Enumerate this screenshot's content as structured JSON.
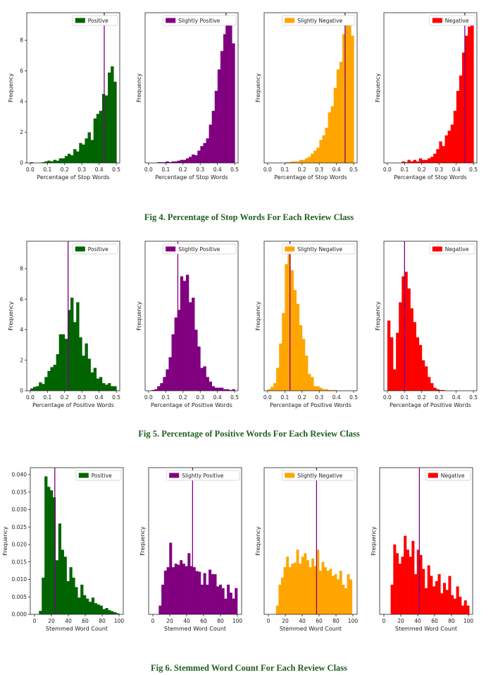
{
  "captions": [
    "Fig 4. Percentage of Stop Words For Each Review Class",
    "Fig 5. Percentage of Positive Words For Each Review Class",
    "Fig 6. Stemmed Word Count For Each Review Class"
  ],
  "colors": {
    "positive": "#006400",
    "slightly_positive": "#800080",
    "slightly_negative": "#FFA500",
    "negative": "#FF0000",
    "median_line": "#800080"
  },
  "chart_data": [
    {
      "type": "bar",
      "figure": "Fig 4",
      "panel": "Positive",
      "color": "#006400",
      "legend": "Positive",
      "xlabel": "Percentage of Stop Words",
      "ylabel": "Frequency",
      "xlim": [
        -0.02,
        0.52
      ],
      "ylim": [
        0,
        9.8
      ],
      "xticks": [
        0.0,
        0.1,
        0.2,
        0.3,
        0.4,
        0.5
      ],
      "yticks": [
        0,
        2,
        4,
        6,
        8
      ],
      "show_yticks": true,
      "bin_start": 0.0,
      "bin_width": 0.0167,
      "values": [
        0.05,
        0,
        0,
        0,
        0.05,
        0.1,
        0.15,
        0.1,
        0.2,
        0.15,
        0.3,
        0.3,
        0.45,
        0.6,
        0.5,
        0.9,
        0.75,
        1.3,
        1.2,
        1.6,
        2.0,
        1.5,
        2.9,
        3.2,
        3.4,
        4.5,
        4.4,
        5.9,
        6.3,
        5.3
      ],
      "vline": 0.43
    },
    {
      "type": "bar",
      "figure": "Fig 4",
      "panel": "Slightly Positive",
      "color": "#800080",
      "legend": "Slightly Positive",
      "xlabel": "Percentage of Stop Words",
      "ylabel": "Frequency",
      "xlim": [
        -0.02,
        0.52
      ],
      "ylim": [
        0,
        9.8
      ],
      "xticks": [
        0.0,
        0.1,
        0.2,
        0.3,
        0.4,
        0.5
      ],
      "yticks": [
        0,
        2,
        4,
        6,
        8
      ],
      "show_yticks": false,
      "bin_start": 0.0,
      "bin_width": 0.0167,
      "values": [
        0,
        0,
        0,
        0.05,
        0.05,
        0.05,
        0.1,
        0.05,
        0.1,
        0.1,
        0.15,
        0.2,
        0.2,
        0.3,
        0.4,
        0.55,
        0.5,
        0.8,
        1.1,
        1.3,
        1.6,
        2.5,
        3.4,
        4.7,
        6.1,
        7.3,
        8.4,
        9.3,
        9.0,
        7.8
      ],
      "vline": 0.45
    },
    {
      "type": "bar",
      "figure": "Fig 4",
      "panel": "Slightly Negative",
      "color": "#FFA500",
      "legend": "Slightly Negative",
      "xlabel": "Percentage of Stop Words",
      "ylabel": "Frequency",
      "xlim": [
        -0.02,
        0.52
      ],
      "ylim": [
        0,
        9.8
      ],
      "xticks": [
        0.0,
        0.1,
        0.2,
        0.3,
        0.4,
        0.5
      ],
      "yticks": [
        0,
        2,
        4,
        6,
        8
      ],
      "show_yticks": false,
      "bin_start": 0.0,
      "bin_width": 0.0167,
      "values": [
        0,
        0,
        0,
        0,
        0,
        0,
        0.05,
        0.05,
        0.1,
        0.1,
        0.1,
        0.2,
        0.2,
        0.3,
        0.4,
        0.6,
        0.8,
        1.0,
        1.5,
        1.8,
        2.3,
        3.3,
        3.7,
        4.9,
        6.1,
        6.6,
        8.4,
        9.6,
        9.4,
        8.3
      ],
      "vline": 0.45
    },
    {
      "type": "bar",
      "figure": "Fig 4",
      "panel": "Negative",
      "color": "#FF0000",
      "legend": "Negative",
      "xlabel": "Percentage of Stop Words",
      "ylabel": "Frequency",
      "xlim": [
        -0.02,
        0.52
      ],
      "ylim": [
        0,
        9.8
      ],
      "xticks": [
        0.0,
        0.1,
        0.2,
        0.3,
        0.4,
        0.5
      ],
      "yticks": [
        0,
        2,
        4,
        6,
        8
      ],
      "show_yticks": false,
      "bin_start": 0.0,
      "bin_width": 0.0167,
      "values": [
        0,
        0,
        0,
        0,
        0,
        0.1,
        0.05,
        0.2,
        0.1,
        0.2,
        0.1,
        0.3,
        0.2,
        0.2,
        0.3,
        0.4,
        0.6,
        0.9,
        1.4,
        1.1,
        1.8,
        2.1,
        2.5,
        3.4,
        4.7,
        5.7,
        7.2,
        8.3,
        8.9,
        9.1
      ],
      "vline": 0.45
    },
    {
      "type": "bar",
      "figure": "Fig 5",
      "panel": "Positive",
      "color": "#006400",
      "legend": "Positive",
      "xlabel": "Percentage of Positive Words",
      "ylabel": "Frequency",
      "xlim": [
        -0.02,
        0.52
      ],
      "ylim": [
        0,
        9.8
      ],
      "xticks": [
        0.0,
        0.1,
        0.2,
        0.3,
        0.4,
        0.5
      ],
      "yticks": [
        0,
        2,
        4,
        6,
        8
      ],
      "show_yticks": true,
      "bin_start": 0.0,
      "bin_width": 0.0167,
      "values": [
        0.15,
        0.25,
        0.3,
        0.55,
        0.45,
        0.9,
        1.3,
        1.55,
        1.7,
        2.4,
        3.7,
        3.7,
        3.4,
        5.3,
        6.1,
        4.5,
        5.8,
        3.5,
        2.3,
        3.1,
        2.1,
        1.2,
        1.5,
        0.8,
        0.9,
        0.5,
        0.4,
        0.5,
        0.3,
        0.3
      ],
      "vline": 0.22
    },
    {
      "type": "bar",
      "figure": "Fig 5",
      "panel": "Slightly Positive",
      "color": "#800080",
      "legend": "Slightly Positive",
      "xlabel": "Percentage of Positive Words",
      "ylabel": "Frequency",
      "xlim": [
        -0.02,
        0.52
      ],
      "ylim": [
        0,
        9.8
      ],
      "xticks": [
        0.0,
        0.1,
        0.2,
        0.3,
        0.4,
        0.5
      ],
      "yticks": [
        0,
        2,
        4,
        6,
        8
      ],
      "show_yticks": false,
      "bin_start": 0.0,
      "bin_width": 0.0167,
      "values": [
        0,
        0.05,
        0.1,
        0.3,
        0.5,
        0.9,
        1.4,
        2.2,
        3.7,
        4.8,
        5.3,
        7.5,
        7.2,
        7.6,
        5.8,
        6.1,
        4.0,
        2.9,
        1.5,
        1.6,
        0.9,
        0.6,
        0.3,
        0.2,
        0.2,
        0.2,
        0.1,
        0.1,
        0.05,
        0.1
      ],
      "vline": 0.17
    },
    {
      "type": "bar",
      "figure": "Fig 5",
      "panel": "Slightly Negative",
      "color": "#FFA500",
      "legend": "Slightly Negative",
      "xlabel": "Percentage of Positive Words",
      "ylabel": "Frequency",
      "xlim": [
        -0.02,
        0.52
      ],
      "ylim": [
        0,
        9.8
      ],
      "xticks": [
        0.0,
        0.1,
        0.2,
        0.3,
        0.4,
        0.5
      ],
      "yticks": [
        0,
        2,
        4,
        6,
        8
      ],
      "show_yticks": false,
      "bin_start": 0.0,
      "bin_width": 0.0167,
      "values": [
        0.1,
        0.25,
        0.5,
        1.5,
        3.1,
        5.1,
        8.3,
        9.5,
        7.9,
        6.6,
        5.7,
        4.3,
        3.4,
        2.3,
        1.1,
        0.9,
        0.3,
        0.3,
        0.2,
        0.1,
        0.1,
        0.05,
        0.05,
        0.05,
        0,
        0,
        0,
        0,
        0,
        0
      ],
      "vline": 0.13
    },
    {
      "type": "bar",
      "figure": "Fig 5",
      "panel": "Negative",
      "color": "#FF0000",
      "legend": "Negative",
      "xlabel": "Percentage of Positive Words",
      "ylabel": "Frequency",
      "xlim": [
        -0.02,
        0.52
      ],
      "ylim": [
        0,
        9.8
      ],
      "xticks": [
        0.0,
        0.1,
        0.2,
        0.3,
        0.4,
        0.5
      ],
      "yticks": [
        0,
        2,
        4,
        6,
        8
      ],
      "show_yticks": false,
      "bin_start": 0.0,
      "bin_width": 0.0167,
      "values": [
        4.6,
        3.5,
        1.4,
        3.8,
        5.8,
        7.5,
        7.8,
        6.7,
        5.4,
        4.5,
        3.5,
        3.0,
        2.0,
        1.6,
        0.9,
        0.5,
        0.2,
        0.1,
        0.05,
        0.05,
        0,
        0,
        0,
        0,
        0,
        0,
        0,
        0,
        0,
        0
      ],
      "vline": 0.1
    },
    {
      "type": "bar",
      "figure": "Fig 6",
      "panel": "Positive",
      "color": "#006400",
      "legend": "Positive",
      "xlabel": "Stemmed Word Count",
      "ylabel": "Frequency",
      "xlim": [
        -5,
        105
      ],
      "ylim": [
        0,
        0.042
      ],
      "xticks": [
        0,
        20,
        40,
        60,
        80,
        100
      ],
      "yticks": [
        0,
        0.005,
        0.01,
        0.015,
        0.02,
        0.025,
        0.03,
        0.035,
        0.04
      ],
      "show_yticks": true,
      "bin_start": 2,
      "bin_width": 3.27,
      "values": [
        0.0,
        0.001,
        0.0105,
        0.0395,
        0.0365,
        0.0355,
        0.0335,
        0.0155,
        0.026,
        0.0185,
        0.0165,
        0.0095,
        0.0135,
        0.0105,
        0.0078,
        0.0048,
        0.0085,
        0.0055,
        0.0045,
        0.0036,
        0.0048,
        0.0032,
        0.0028,
        0.0025,
        0.0015,
        0.0018,
        0.0012,
        0.0009,
        0.0006,
        0.0003
      ],
      "vline": 24
    },
    {
      "type": "bar",
      "figure": "Fig 6",
      "panel": "Slightly Positive",
      "color": "#800080",
      "legend": "Slightly Positive",
      "xlabel": "Stemmed Word Count",
      "ylabel": "Frequency",
      "xlim": [
        -5,
        105
      ],
      "ylim": [
        0,
        0.042
      ],
      "xticks": [
        0,
        20,
        40,
        60,
        80,
        100
      ],
      "yticks": [
        0,
        0.005,
        0.01,
        0.015,
        0.02,
        0.025,
        0.03,
        0.035,
        0.04
      ],
      "show_yticks": false,
      "bin_start": 7,
      "bin_width": 3.1,
      "values": [
        0.0025,
        0.0085,
        0.0125,
        0.0135,
        0.0205,
        0.0135,
        0.0145,
        0.0142,
        0.0155,
        0.0145,
        0.0138,
        0.0175,
        0.0138,
        0.0135,
        0.0124,
        0.0122,
        0.0085,
        0.0118,
        0.0085,
        0.0128,
        0.0115,
        0.0115,
        0.008,
        0.0085,
        0.0075,
        0.0045,
        0.0085,
        0.0062,
        0.0045,
        0.0075
      ],
      "vline": 47
    },
    {
      "type": "bar",
      "figure": "Fig 6",
      "panel": "Slightly Negative",
      "color": "#FFA500",
      "legend": "Slightly Negative",
      "xlabel": "Stemmed Word Count",
      "ylabel": "Frequency",
      "xlim": [
        -5,
        105
      ],
      "ylim": [
        0,
        0.042
      ],
      "xticks": [
        0,
        20,
        40,
        60,
        80,
        100
      ],
      "yticks": [
        0,
        0.005,
        0.01,
        0.015,
        0.02,
        0.025,
        0.03,
        0.035,
        0.04
      ],
      "show_yticks": false,
      "bin_start": 9,
      "bin_width": 3.0,
      "values": [
        0.0025,
        0.0085,
        0.0105,
        0.0135,
        0.0165,
        0.0135,
        0.0145,
        0.0148,
        0.0185,
        0.0145,
        0.0165,
        0.0175,
        0.0155,
        0.0135,
        0.016,
        0.0138,
        0.0185,
        0.0125,
        0.015,
        0.0135,
        0.0125,
        0.013,
        0.011,
        0.0115,
        0.01,
        0.0125,
        0.0085,
        0.0075,
        0.0115,
        0.01
      ],
      "vline": 57
    },
    {
      "type": "bar",
      "figure": "Fig 6",
      "panel": "Negative",
      "color": "#FF0000",
      "legend": "Negative",
      "xlabel": "Stemmed Word Count",
      "ylabel": "Frequency",
      "xlim": [
        -5,
        105
      ],
      "ylim": [
        0,
        0.042
      ],
      "xticks": [
        0,
        20,
        40,
        60,
        80,
        100
      ],
      "yticks": [
        0,
        0.005,
        0.01,
        0.015,
        0.02,
        0.025,
        0.03,
        0.035,
        0.04
      ],
      "show_yticks": false,
      "bin_start": 8,
      "bin_width": 3.1,
      "values": [
        0.0085,
        0.02,
        0.0175,
        0.0145,
        0.0165,
        0.0225,
        0.0185,
        0.0165,
        0.021,
        0.0115,
        0.0185,
        0.017,
        0.013,
        0.0075,
        0.014,
        0.011,
        0.008,
        0.0095,
        0.0115,
        0.006,
        0.009,
        0.007,
        0.011,
        0.0055,
        0.0045,
        0.008,
        0.005,
        0.0025,
        0.004,
        0.0025
      ],
      "vline": 42
    }
  ]
}
